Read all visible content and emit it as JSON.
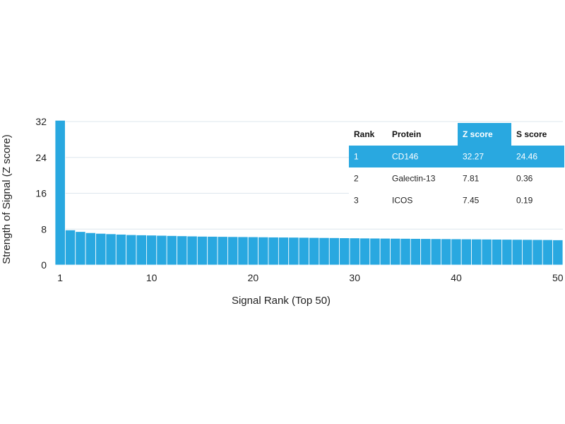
{
  "colors": {
    "bar": "#29a8e0",
    "bar_edge": "#ffffff",
    "highlight": "#29a8e0",
    "grid": "#dde7ee",
    "text": "#222222"
  },
  "chart_data": {
    "type": "bar",
    "xlabel": "Signal Rank (Top 50)",
    "ylabel": "Strength of Signal (Z score)",
    "ylim": [
      0,
      32
    ],
    "yticks": [
      0,
      8,
      16,
      24,
      32
    ],
    "xticks": [
      1,
      10,
      20,
      30,
      40,
      50
    ],
    "grid": "horizontal",
    "x": [
      1,
      2,
      3,
      4,
      5,
      6,
      7,
      8,
      9,
      10,
      11,
      12,
      13,
      14,
      15,
      16,
      17,
      18,
      19,
      20,
      21,
      22,
      23,
      24,
      25,
      26,
      27,
      28,
      29,
      30,
      31,
      32,
      33,
      34,
      35,
      36,
      37,
      38,
      39,
      40,
      41,
      42,
      43,
      44,
      45,
      46,
      47,
      48,
      49,
      50
    ],
    "values": [
      32.27,
      7.81,
      7.45,
      7.2,
      7.05,
      6.95,
      6.85,
      6.75,
      6.7,
      6.65,
      6.6,
      6.55,
      6.5,
      6.45,
      6.4,
      6.38,
      6.35,
      6.32,
      6.3,
      6.28,
      6.25,
      6.22,
      6.2,
      6.18,
      6.15,
      6.12,
      6.1,
      6.08,
      6.05,
      6.03,
      6.0,
      5.98,
      5.96,
      5.94,
      5.92,
      5.9,
      5.88,
      5.86,
      5.84,
      5.82,
      5.8,
      5.78,
      5.76,
      5.74,
      5.72,
      5.7,
      5.68,
      5.66,
      5.64,
      5.6
    ]
  },
  "table": {
    "headers": [
      "Rank",
      "Protein",
      "Z score",
      "S score"
    ],
    "highlight_header_index": 2,
    "highlight_row_index": 0,
    "rows": [
      [
        "1",
        "CD146",
        "32.27",
        "24.46"
      ],
      [
        "2",
        "Galectin-13",
        "7.81",
        "0.36"
      ],
      [
        "3",
        "ICOS",
        "7.45",
        "0.19"
      ]
    ]
  }
}
